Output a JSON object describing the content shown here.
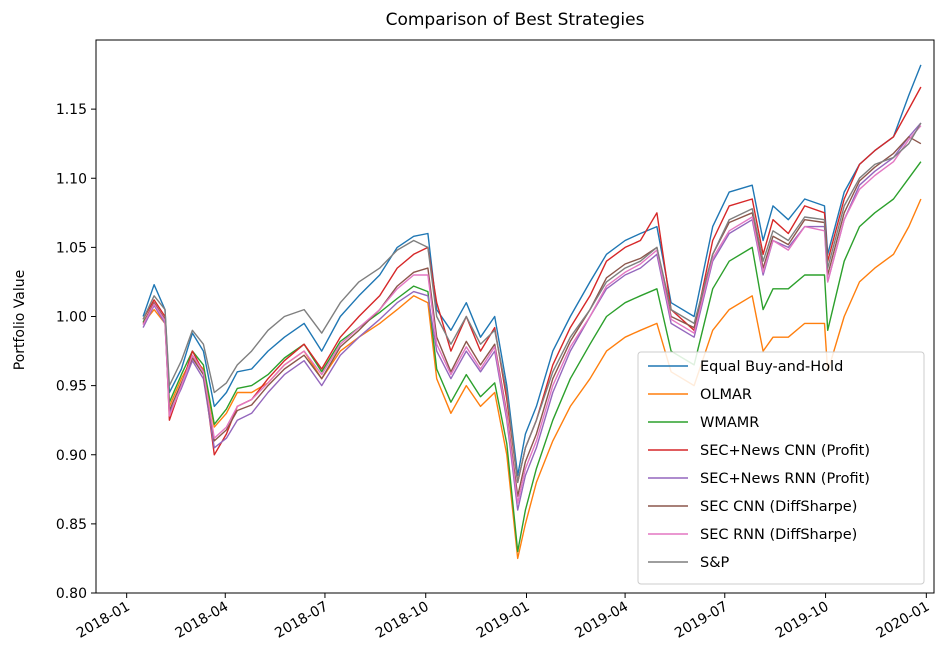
{
  "chart_data": {
    "type": "line",
    "title": "Comparison of Best Strategies",
    "xlabel": "",
    "ylabel": "Portfolio Value",
    "xlim": [
      "2017-12-04",
      "2020-01-08"
    ],
    "ylim": [
      0.8,
      1.2
    ],
    "grid": false,
    "legend_position": "lower-right",
    "x_ticks": [
      {
        "date": "2018-01-01",
        "label": "2018-01"
      },
      {
        "date": "2018-04-01",
        "label": "2018-04"
      },
      {
        "date": "2018-07-01",
        "label": "2018-07"
      },
      {
        "date": "2018-10-01",
        "label": "2018-10"
      },
      {
        "date": "2019-01-01",
        "label": "2019-01"
      },
      {
        "date": "2019-04-01",
        "label": "2019-04"
      },
      {
        "date": "2019-07-01",
        "label": "2019-07"
      },
      {
        "date": "2019-10-01",
        "label": "2019-10"
      },
      {
        "date": "2020-01-01",
        "label": "2020-01"
      }
    ],
    "y_ticks": [
      0.8,
      0.85,
      0.9,
      0.95,
      1.0,
      1.05,
      1.1,
      1.15
    ],
    "x": [
      "2018-01-16",
      "2018-01-26",
      "2018-02-05",
      "2018-02-09",
      "2018-02-20",
      "2018-03-02",
      "2018-03-12",
      "2018-03-22",
      "2018-04-02",
      "2018-04-12",
      "2018-04-25",
      "2018-05-10",
      "2018-05-25",
      "2018-06-12",
      "2018-06-28",
      "2018-07-15",
      "2018-08-01",
      "2018-08-20",
      "2018-09-05",
      "2018-09-20",
      "2018-10-03",
      "2018-10-11",
      "2018-10-24",
      "2018-11-07",
      "2018-11-20",
      "2018-12-03",
      "2018-12-14",
      "2018-12-24",
      "2018-12-31",
      "2019-01-10",
      "2019-01-25",
      "2019-02-10",
      "2019-02-28",
      "2019-03-15",
      "2019-04-01",
      "2019-04-15",
      "2019-04-30",
      "2019-05-13",
      "2019-06-03",
      "2019-06-20",
      "2019-07-05",
      "2019-07-26",
      "2019-08-05",
      "2019-08-14",
      "2019-08-28",
      "2019-09-12",
      "2019-09-30",
      "2019-10-03",
      "2019-10-18",
      "2019-11-01",
      "2019-11-15",
      "2019-12-02",
      "2019-12-16",
      "2019-12-27"
    ],
    "series": [
      {
        "name": "Equal Buy-and-Hold",
        "color": "#1f77b4",
        "values": [
          1.0,
          1.023,
          1.005,
          0.945,
          0.962,
          0.988,
          0.975,
          0.935,
          0.945,
          0.96,
          0.962,
          0.975,
          0.985,
          0.995,
          0.975,
          1.0,
          1.015,
          1.03,
          1.05,
          1.058,
          1.06,
          1.005,
          0.99,
          1.01,
          0.985,
          1.0,
          0.95,
          0.885,
          0.915,
          0.935,
          0.975,
          1.0,
          1.025,
          1.045,
          1.055,
          1.06,
          1.065,
          1.01,
          1.0,
          1.065,
          1.09,
          1.095,
          1.055,
          1.08,
          1.07,
          1.085,
          1.08,
          1.045,
          1.09,
          1.11,
          1.12,
          1.13,
          1.16,
          1.182
        ]
      },
      {
        "name": "OLMAR",
        "color": "#ff7f0e",
        "values": [
          0.995,
          1.005,
          0.995,
          0.935,
          0.955,
          0.97,
          0.962,
          0.92,
          0.93,
          0.945,
          0.945,
          0.952,
          0.965,
          0.975,
          0.955,
          0.975,
          0.985,
          0.995,
          1.005,
          1.015,
          1.01,
          0.955,
          0.93,
          0.95,
          0.935,
          0.945,
          0.9,
          0.825,
          0.85,
          0.88,
          0.91,
          0.935,
          0.955,
          0.975,
          0.985,
          0.99,
          0.995,
          0.96,
          0.95,
          0.99,
          1.005,
          1.015,
          0.975,
          0.985,
          0.985,
          0.995,
          0.995,
          0.96,
          1.0,
          1.025,
          1.035,
          1.045,
          1.065,
          1.085
        ]
      },
      {
        "name": "WMAMR",
        "color": "#2ca02c",
        "values": [
          0.996,
          1.008,
          0.998,
          0.938,
          0.958,
          0.975,
          0.965,
          0.922,
          0.933,
          0.948,
          0.95,
          0.958,
          0.97,
          0.98,
          0.96,
          0.982,
          0.992,
          1.003,
          1.013,
          1.022,
          1.018,
          0.962,
          0.938,
          0.958,
          0.942,
          0.952,
          0.908,
          0.83,
          0.86,
          0.89,
          0.925,
          0.955,
          0.98,
          1.0,
          1.01,
          1.015,
          1.02,
          0.975,
          0.965,
          1.02,
          1.04,
          1.05,
          1.005,
          1.02,
          1.02,
          1.03,
          1.03,
          0.99,
          1.04,
          1.065,
          1.075,
          1.085,
          1.1,
          1.112
        ]
      },
      {
        "name": "SEC+News CNN (Profit)",
        "color": "#d62728",
        "values": [
          0.998,
          1.012,
          1.0,
          0.925,
          0.95,
          0.975,
          0.96,
          0.9,
          0.915,
          0.935,
          0.94,
          0.955,
          0.968,
          0.98,
          0.962,
          0.985,
          1.0,
          1.015,
          1.035,
          1.045,
          1.05,
          1.01,
          0.975,
          1.0,
          0.975,
          0.992,
          0.94,
          0.88,
          0.905,
          0.925,
          0.965,
          0.992,
          1.015,
          1.04,
          1.05,
          1.055,
          1.075,
          1.005,
          0.99,
          1.055,
          1.08,
          1.085,
          1.045,
          1.07,
          1.06,
          1.08,
          1.075,
          1.04,
          1.085,
          1.11,
          1.12,
          1.13,
          1.15,
          1.166
        ]
      },
      {
        "name": "SEC+News RNN (Profit)",
        "color": "#9467bd",
        "values": [
          0.992,
          1.008,
          0.995,
          0.93,
          0.948,
          0.968,
          0.955,
          0.905,
          0.912,
          0.925,
          0.93,
          0.945,
          0.958,
          0.968,
          0.95,
          0.972,
          0.985,
          0.998,
          1.01,
          1.018,
          1.015,
          0.975,
          0.955,
          0.975,
          0.96,
          0.975,
          0.925,
          0.86,
          0.885,
          0.905,
          0.945,
          0.975,
          1.0,
          1.02,
          1.03,
          1.035,
          1.045,
          0.995,
          0.985,
          1.04,
          1.06,
          1.07,
          1.03,
          1.055,
          1.05,
          1.065,
          1.065,
          1.025,
          1.07,
          1.095,
          1.105,
          1.115,
          1.13,
          1.14
        ]
      },
      {
        "name": "SEC CNN (DiffSharpe)",
        "color": "#8c564b",
        "values": [
          0.995,
          1.01,
          0.998,
          0.932,
          0.952,
          0.97,
          0.958,
          0.91,
          0.918,
          0.932,
          0.936,
          0.95,
          0.962,
          0.972,
          0.955,
          0.978,
          0.99,
          1.005,
          1.022,
          1.032,
          1.035,
          0.985,
          0.96,
          0.982,
          0.965,
          0.98,
          0.93,
          0.87,
          0.895,
          0.915,
          0.955,
          0.982,
          1.005,
          1.028,
          1.038,
          1.042,
          1.05,
          1.0,
          0.992,
          1.045,
          1.068,
          1.075,
          1.035,
          1.058,
          1.052,
          1.07,
          1.068,
          1.03,
          1.075,
          1.098,
          1.108,
          1.118,
          1.13,
          1.125
        ]
      },
      {
        "name": "SEC RNN (DiffSharpe)",
        "color": "#e377c2",
        "values": [
          0.994,
          1.009,
          0.997,
          0.928,
          0.95,
          0.972,
          0.96,
          0.912,
          0.92,
          0.935,
          0.94,
          0.952,
          0.965,
          0.975,
          0.958,
          0.98,
          0.992,
          1.005,
          1.02,
          1.03,
          1.03,
          0.98,
          0.958,
          0.978,
          0.962,
          0.978,
          0.928,
          0.865,
          0.89,
          0.91,
          0.95,
          0.978,
          1.0,
          1.022,
          1.032,
          1.038,
          1.048,
          0.998,
          0.988,
          1.042,
          1.062,
          1.072,
          1.032,
          1.055,
          1.048,
          1.065,
          1.062,
          1.025,
          1.07,
          1.092,
          1.102,
          1.112,
          1.128,
          1.138
        ]
      },
      {
        "name": "S&P",
        "color": "#7f7f7f",
        "values": [
          0.998,
          1.015,
          1.005,
          0.95,
          0.968,
          0.99,
          0.98,
          0.945,
          0.952,
          0.965,
          0.975,
          0.99,
          1.0,
          1.005,
          0.988,
          1.01,
          1.025,
          1.035,
          1.048,
          1.055,
          1.05,
          1.0,
          0.98,
          1.0,
          0.98,
          0.99,
          0.945,
          0.88,
          0.905,
          0.925,
          0.96,
          0.985,
          1.005,
          1.025,
          1.035,
          1.04,
          1.05,
          1.005,
          0.995,
          1.045,
          1.07,
          1.078,
          1.04,
          1.062,
          1.055,
          1.072,
          1.07,
          1.035,
          1.08,
          1.1,
          1.11,
          1.115,
          1.125,
          1.14
        ]
      }
    ]
  }
}
